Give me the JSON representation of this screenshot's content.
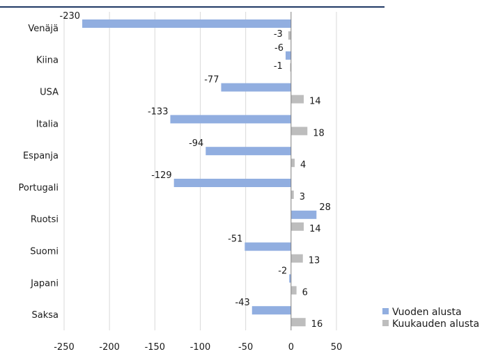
{
  "chart_data": {
    "type": "bar",
    "orientation": "horizontal",
    "categories": [
      "Venäjä",
      "Kiina",
      "USA",
      "Italia",
      "Espanja",
      "Portugali",
      "Ruotsi",
      "Suomi",
      "Japani",
      "Saksa"
    ],
    "series": [
      {
        "name": "Vuoden alusta",
        "color": "#91aee0",
        "values": [
          -230,
          -6,
          -77,
          -133,
          -94,
          -129,
          28,
          -51,
          -2,
          -43
        ]
      },
      {
        "name": "Kuukauden alusta",
        "color": "#bdbdbd",
        "values": [
          -3,
          -1,
          14,
          18,
          4,
          3,
          14,
          13,
          6,
          16
        ]
      }
    ],
    "xlim": [
      -250,
      50
    ],
    "xticks": [
      -250,
      -200,
      -150,
      -100,
      -50,
      0,
      50
    ],
    "grid": true,
    "legend": "bottom-right",
    "top_rule_color": "#1f3864",
    "axis_color": "#7f7f7f",
    "grid_color": "#d9d9d9"
  }
}
